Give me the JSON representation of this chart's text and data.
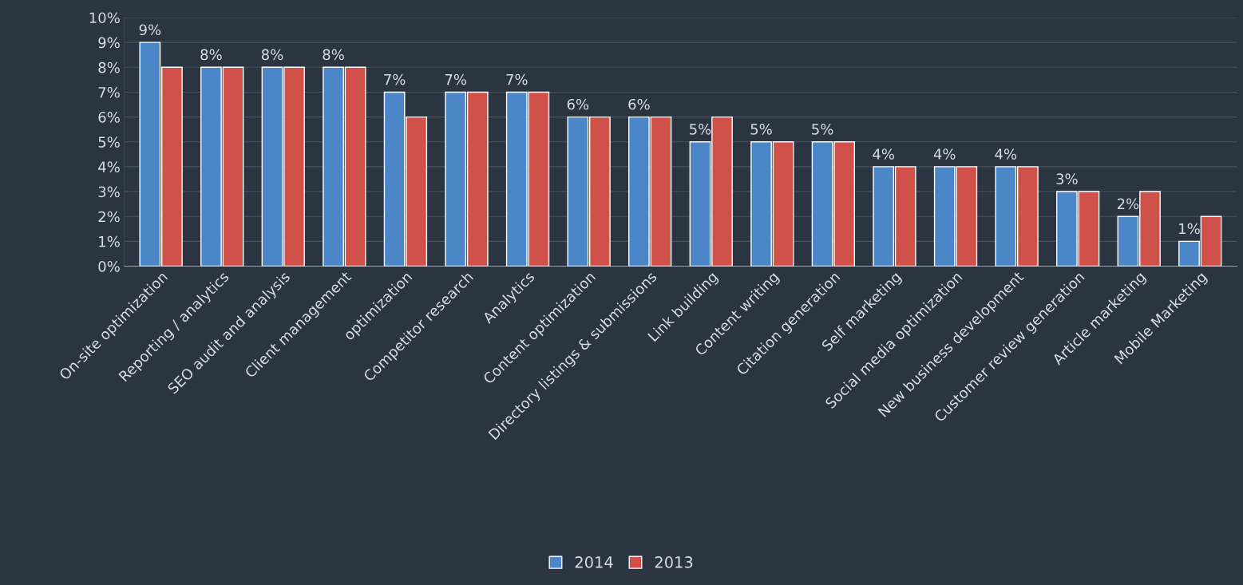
{
  "chart_data": {
    "type": "bar",
    "categories": [
      "On-site optimization",
      "Reporting / analytics",
      "SEO audit and analysis",
      "Client management",
      "optimization",
      "Competitor research",
      "Analytics",
      "Content optimization",
      "Directory listings & submissions",
      "Link building",
      "Content writing",
      "Citation generation",
      "Self marketing",
      "Social media optimization",
      "New business development",
      "Customer review generation",
      "Article marketing",
      "Mobile Marketing"
    ],
    "series": [
      {
        "name": "2014",
        "color": "#4a86c8",
        "values": [
          9,
          8,
          8,
          8,
          7,
          7,
          7,
          6,
          6,
          5,
          5,
          5,
          4,
          4,
          4,
          3,
          2,
          1
        ],
        "value_labels": [
          "9%",
          "8%",
          "8%",
          "8%",
          "7%",
          "7%",
          "7%",
          "6%",
          "6%",
          "5%",
          "5%",
          "5%",
          "4%",
          "4%",
          "4%",
          "3%",
          "2%",
          "1%"
        ]
      },
      {
        "name": "2013",
        "color": "#d0504a",
        "values": [
          8,
          8,
          8,
          8,
          6,
          7,
          7,
          6,
          6,
          6,
          5,
          5,
          4,
          4,
          4,
          3,
          3,
          2
        ]
      }
    ],
    "ylim": [
      0,
      10
    ],
    "yticks": [
      {
        "value": 0,
        "label": "0%"
      },
      {
        "value": 1,
        "label": "1%"
      },
      {
        "value": 2,
        "label": "2%"
      },
      {
        "value": 3,
        "label": "3%"
      },
      {
        "value": 4,
        "label": "4%"
      },
      {
        "value": 5,
        "label": "5%"
      },
      {
        "value": 6,
        "label": "6%"
      },
      {
        "value": 7,
        "label": "7%"
      },
      {
        "value": 8,
        "label": "8%"
      },
      {
        "value": 9,
        "label": "9%"
      },
      {
        "value": 10,
        "label": "10%"
      }
    ],
    "grid": "y",
    "legend": "bottom"
  }
}
